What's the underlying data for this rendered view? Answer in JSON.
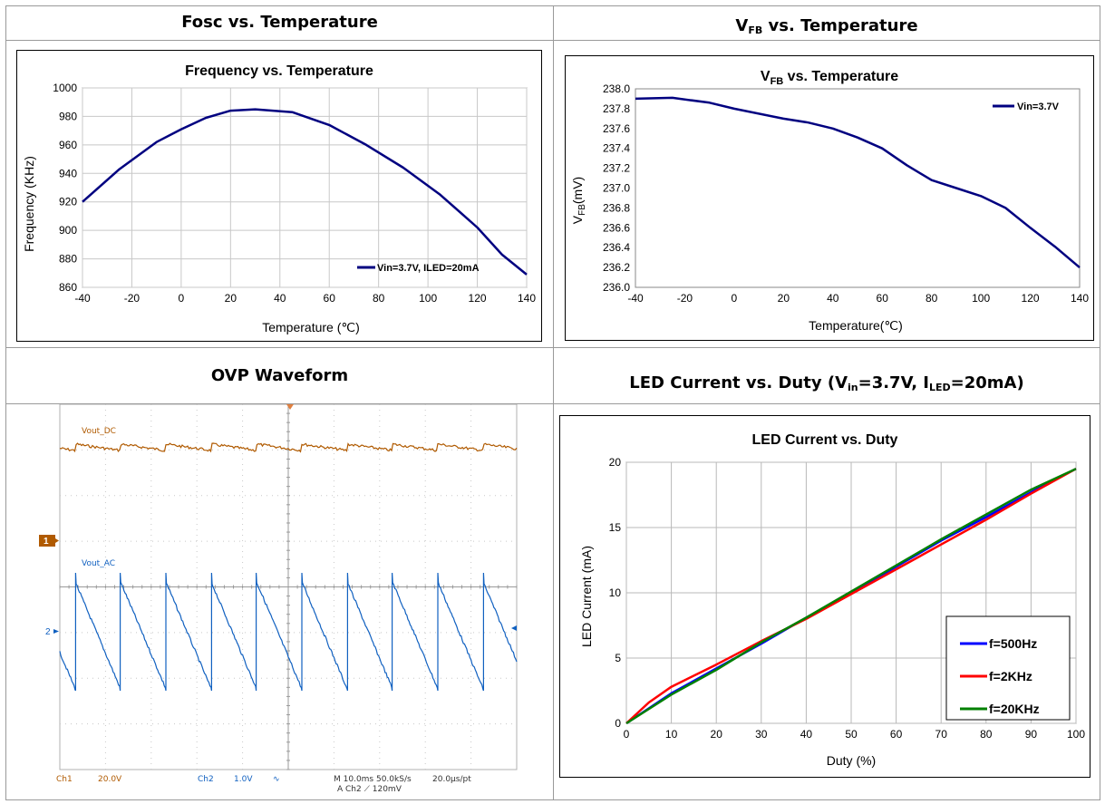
{
  "headers": {
    "top_left": "Fosc vs. Temperature",
    "top_right_main": "V",
    "top_right_sub": "FB",
    "top_right_rest": " vs. Temperature",
    "bottom_left": "OVP Waveform",
    "bottom_right_pre": "LED Current vs. Duty (V",
    "bottom_right_sub1": "in",
    "bottom_right_mid": "=3.7V, I",
    "bottom_right_sub2": "LED",
    "bottom_right_post": "=20mA)"
  },
  "chart_data": [
    {
      "type": "line",
      "title": "Frequency vs. Temperature",
      "xlabel": "Temperature (℃)",
      "ylabel": "Frequency (KHz)",
      "xlim": [
        -40,
        140
      ],
      "ylim": [
        860,
        1000
      ],
      "xticks": [
        -40,
        -20,
        0,
        20,
        40,
        60,
        80,
        100,
        120,
        140
      ],
      "yticks": [
        860,
        880,
        900,
        920,
        940,
        960,
        980,
        1000
      ],
      "grid": true,
      "legend_position": "bottom-right",
      "series": [
        {
          "name": "Vin=3.7V, ILED=20mA",
          "color": "#000080",
          "x": [
            -40,
            -25,
            -10,
            0,
            10,
            20,
            30,
            45,
            60,
            75,
            90,
            105,
            120,
            130,
            140
          ],
          "y": [
            920,
            943,
            962,
            971,
            979,
            984,
            985,
            983,
            974,
            960,
            944,
            925,
            902,
            883,
            869
          ]
        }
      ]
    },
    {
      "type": "line",
      "title": "VFB vs. Temperature",
      "title_main": "V",
      "title_sub": "FB",
      "title_rest": " vs. Temperature",
      "xlabel": "Temperature(℃)",
      "ylabel": "VFB(mV)",
      "ylabel_main": "V",
      "ylabel_sub": "FB",
      "ylabel_rest": "(mV)",
      "xlim": [
        -40,
        140
      ],
      "ylim": [
        236.0,
        238.0
      ],
      "xticks": [
        -40,
        -20,
        0,
        20,
        40,
        60,
        80,
        100,
        120,
        140
      ],
      "yticks": [
        "236.0",
        "236.2",
        "236.4",
        "236.6",
        "236.8",
        "237.0",
        "237.2",
        "237.4",
        "237.6",
        "237.8",
        "238.0"
      ],
      "grid": false,
      "legend_position": "top-right",
      "series": [
        {
          "name": "Vin=3.7V",
          "color": "#000080",
          "x": [
            -40,
            -25,
            -10,
            0,
            20,
            30,
            40,
            50,
            60,
            70,
            80,
            90,
            100,
            110,
            120,
            130,
            140
          ],
          "y": [
            237.9,
            237.91,
            237.86,
            237.8,
            237.7,
            237.66,
            237.6,
            237.51,
            237.4,
            237.23,
            237.08,
            237.0,
            236.92,
            236.8,
            236.6,
            236.41,
            236.2
          ]
        }
      ]
    },
    {
      "type": "line",
      "title": "LED Current vs. Duty",
      "xlabel": "Duty (%)",
      "ylabel": "LED Current (mA)",
      "xlim": [
        0,
        100
      ],
      "ylim": [
        0,
        20
      ],
      "xticks": [
        0,
        10,
        20,
        30,
        40,
        50,
        60,
        70,
        80,
        90,
        100
      ],
      "yticks": [
        0,
        5,
        10,
        15,
        20
      ],
      "grid": true,
      "legend_position": "bottom-right",
      "series": [
        {
          "name": "f=500Hz",
          "color": "#0000ff",
          "x": [
            0,
            10,
            20,
            30,
            40,
            50,
            60,
            70,
            80,
            90,
            100
          ],
          "y": [
            0,
            2.3,
            4.2,
            6.1,
            8.1,
            10.0,
            12.0,
            14.0,
            15.8,
            17.7,
            19.5
          ]
        },
        {
          "name": "f=2KHz",
          "color": "#ff0000",
          "x": [
            0,
            5,
            10,
            20,
            30,
            40,
            50,
            60,
            70,
            80,
            90,
            100
          ],
          "y": [
            0,
            1.6,
            2.8,
            4.5,
            6.3,
            8.0,
            9.9,
            11.8,
            13.7,
            15.6,
            17.6,
            19.5
          ]
        },
        {
          "name": "f=20KHz",
          "color": "#008000",
          "x": [
            0,
            10,
            20,
            30,
            40,
            50,
            60,
            70,
            80,
            90,
            100
          ],
          "y": [
            0,
            2.2,
            4.1,
            6.2,
            8.1,
            10.1,
            12.1,
            14.1,
            16.0,
            17.9,
            19.5
          ]
        }
      ]
    }
  ],
  "scope": {
    "ch1_label": "Vout_DC",
    "ch2_label": "Vout_AC",
    "ch1_marker": "1",
    "ch2_marker": "2",
    "ch1_color": "#b05a00",
    "ch2_color": "#1060c0",
    "footer": {
      "ch1": "Ch1",
      "ch1_scale": "20.0V",
      "ch2": "Ch2",
      "ch2_scale": "1.0V",
      "ch2_coupling": "∿",
      "timebase": "M 10.0ms 50.0kS/s",
      "rate": "20.0μs/pt",
      "trigger": "A  Ch2  ⟋  120mV"
    }
  }
}
